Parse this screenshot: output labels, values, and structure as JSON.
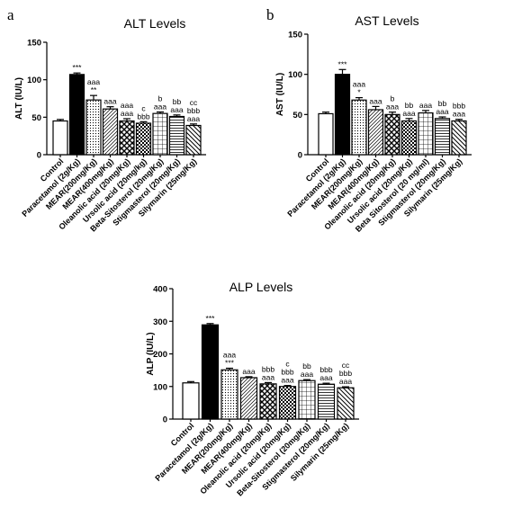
{
  "panel_letters": [
    "a",
    "b"
  ],
  "patterns": [
    "white",
    "black",
    "dots",
    "hatch",
    "cross",
    "checker",
    "grid",
    "hlines",
    "diag"
  ],
  "chart_data": [
    {
      "type": "bar",
      "title": "ALT Levels",
      "ylabel": "ALT (IU/L)",
      "ylim": [
        0,
        150
      ],
      "yticks": [
        0,
        50,
        100,
        150
      ],
      "grid": false,
      "categories": [
        "Control",
        "Paracetamol (2g/Kg)",
        "MEAR(200mg/Kg)",
        "MEAR(400mg/Kg)",
        "Oleanolic acid (20mg/Kg)",
        "Ursolic acid (20mg/kg)",
        "Beta-Sitosterol (20mg/Kg)",
        "Stigmasterol (20mg/Kg)",
        "Silymarin (25mg/Kg)"
      ],
      "values": [
        45,
        107,
        73,
        61,
        45,
        42,
        55,
        51,
        39
      ],
      "errors": [
        2,
        2,
        6,
        3,
        3,
        2,
        2,
        2,
        2
      ],
      "annotations": [
        [],
        [
          "***"
        ],
        [
          "**",
          "aaa"
        ],
        [
          "aaa"
        ],
        [
          "aaa",
          "aaa"
        ],
        [
          "bbb",
          "c"
        ],
        [
          "aaa",
          "b"
        ],
        [
          "aaa",
          "bb"
        ],
        [
          "aaa",
          "bbb",
          "cc"
        ]
      ]
    },
    {
      "type": "bar",
      "title": "AST Levels",
      "ylabel": "AST (IU/L)",
      "ylim": [
        0,
        150
      ],
      "yticks": [
        0,
        50,
        100,
        150
      ],
      "grid": false,
      "categories": [
        "Control",
        "Paracetamol (2g/Kg)",
        "MEAR(200mg/Kg)",
        "MEAR(400mg/Kg)",
        "Oleanolic acid (20mg/Kg)",
        "Ursolic acid (20mg/Kg)",
        "Beta Sitosterol (20 mg/ml)",
        "Stigmasterol (20mg/Kg)",
        "Silymarin (25mg/Kg)"
      ],
      "values": [
        51,
        100,
        68,
        56,
        50,
        42,
        52,
        45,
        42
      ],
      "errors": [
        2,
        6,
        3,
        4,
        3,
        3,
        3,
        2,
        2
      ],
      "annotations": [
        [],
        [
          "***"
        ],
        [
          "*",
          "aaa"
        ],
        [
          "aaa"
        ],
        [
          "aaa",
          "b"
        ],
        [
          "aaa",
          "bb"
        ],
        [
          "aaa"
        ],
        [
          "aaa",
          "bb"
        ],
        [
          "aaa",
          "bbb"
        ]
      ]
    },
    {
      "type": "bar",
      "title": "ALP Levels",
      "ylabel": "ALP (IU/L)",
      "ylim": [
        0,
        400
      ],
      "yticks": [
        0,
        100,
        200,
        300,
        400
      ],
      "grid": false,
      "categories": [
        "Control",
        "Paracetamol (2g/Kg)",
        "MEAR(200mg/Kg)",
        "MEAR(400mg/Kg)",
        "Oleanolic acid (20mg/Kg)",
        "Ursolic acid (20mg/Kg)",
        "Beta-Sitosterol (20mg/Kg)",
        "Stigmasterol (20mg/Kg)",
        "Silymarin (25mg/Kg)"
      ],
      "values": [
        111,
        289,
        151,
        127,
        108,
        100,
        118,
        107,
        96
      ],
      "errors": [
        4,
        4,
        5,
        3,
        4,
        3,
        3,
        3,
        3
      ],
      "annotations": [
        [],
        [
          "***"
        ],
        [
          "***",
          "aaa"
        ],
        [
          "aaa"
        ],
        [
          "aaa",
          "bbb"
        ],
        [
          "aaa",
          "bbb",
          "c"
        ],
        [
          "aaa",
          "bb"
        ],
        [
          "aaa",
          "bbb"
        ],
        [
          "aaa",
          "bbb",
          "cc"
        ]
      ]
    }
  ]
}
